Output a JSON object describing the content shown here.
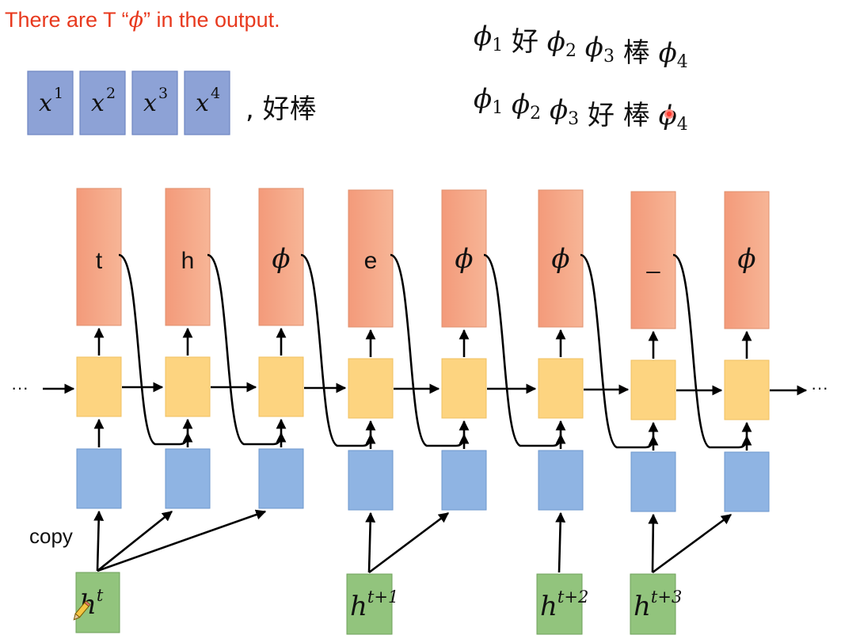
{
  "title": {
    "before": "There are T “",
    "phi": "ϕ",
    "after": "” in the output."
  },
  "inputs": {
    "tokens": [
      "x",
      "x",
      "x",
      "x"
    ],
    "superscripts": [
      "1",
      "2",
      "3",
      "4"
    ],
    "label_text": ", 好棒"
  },
  "alignments": [
    [
      "ϕ",
      "1",
      "好",
      "ϕ",
      "2",
      "ϕ",
      "3",
      "棒",
      "ϕ",
      "4"
    ],
    [
      "ϕ",
      "1",
      "ϕ",
      "2",
      "ϕ",
      "3",
      "好",
      "棒",
      "ϕ",
      "4"
    ]
  ],
  "output_tokens": [
    "t",
    "h",
    "ϕ",
    "e",
    "ϕ",
    "ϕ",
    "_",
    "ϕ"
  ],
  "ellipsis_left": "···",
  "ellipsis_right": "···",
  "copy_label": "copy",
  "hidden_states": [
    {
      "base": "h",
      "sup": "t"
    },
    {
      "base": "h",
      "sup": "t+1"
    },
    {
      "base": "h",
      "sup": "t+2"
    },
    {
      "base": "h",
      "sup": "t+3"
    }
  ],
  "colors": {
    "title": "#e8391e",
    "output_box": "#f6a98a",
    "rnn_box": "#fdd480",
    "embedding_box": "#8fb4e3",
    "hidden_box": "#92c47d",
    "input_box": "#8da2d6",
    "cursor_dot": "#ff3b30"
  },
  "icons": [
    "pencil-cursor-icon",
    "laser-pointer-dot-icon"
  ]
}
